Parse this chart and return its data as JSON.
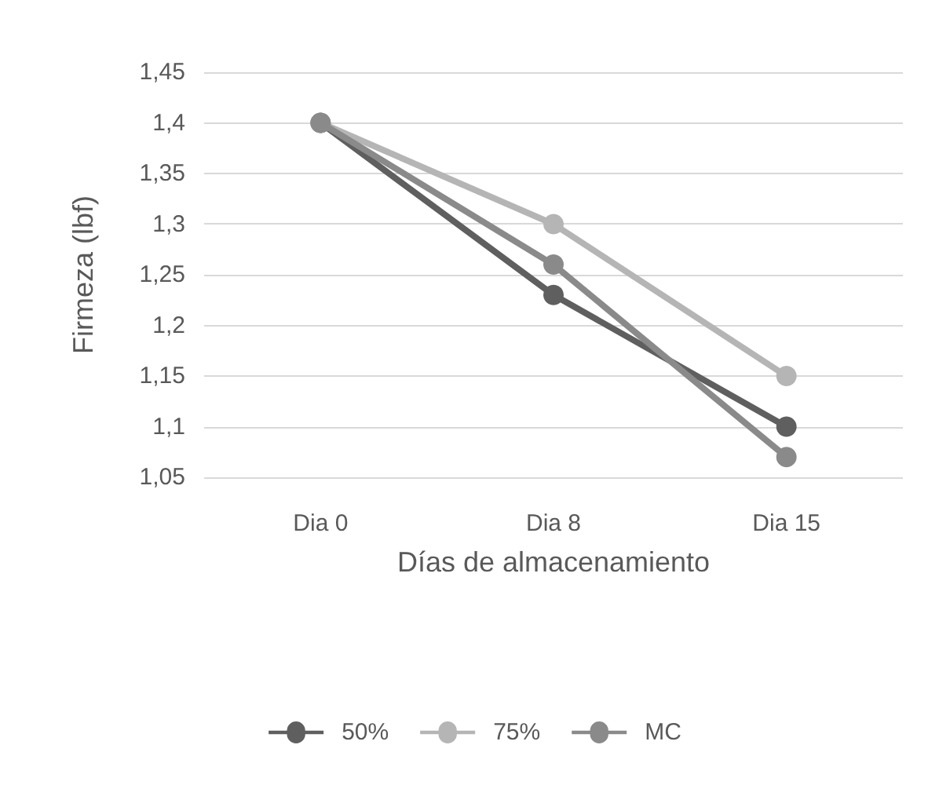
{
  "chart_data": {
    "type": "line",
    "xlabel": "Días de almacenamiento",
    "ylabel": "Firmeza (lbf)",
    "categories": [
      "Dia 0",
      "Dia 8",
      "Dia 15"
    ],
    "series": [
      {
        "name": "50%",
        "color": "#5f5f5f",
        "values": [
          1.4,
          1.23,
          1.1
        ]
      },
      {
        "name": "75%",
        "color": "#b5b5b5",
        "values": [
          1.4,
          1.3,
          1.15
        ]
      },
      {
        "name": "MC",
        "color": "#8a8a8a",
        "values": [
          1.4,
          1.26,
          1.07
        ]
      }
    ],
    "ylim": [
      1.05,
      1.45
    ],
    "yticks": [
      {
        "value": 1.05,
        "label": "1,05"
      },
      {
        "value": 1.1,
        "label": "1,1"
      },
      {
        "value": 1.15,
        "label": "1,15"
      },
      {
        "value": 1.2,
        "label": "1,2"
      },
      {
        "value": 1.25,
        "label": "1,25"
      },
      {
        "value": 1.3,
        "label": "1,3"
      },
      {
        "value": 1.35,
        "label": "1,35"
      },
      {
        "value": 1.4,
        "label": "1,4"
      },
      {
        "value": 1.45,
        "label": "1,45"
      }
    ],
    "grid": "y",
    "legend": "bottom",
    "marker": "circle",
    "line_style": "solid"
  }
}
